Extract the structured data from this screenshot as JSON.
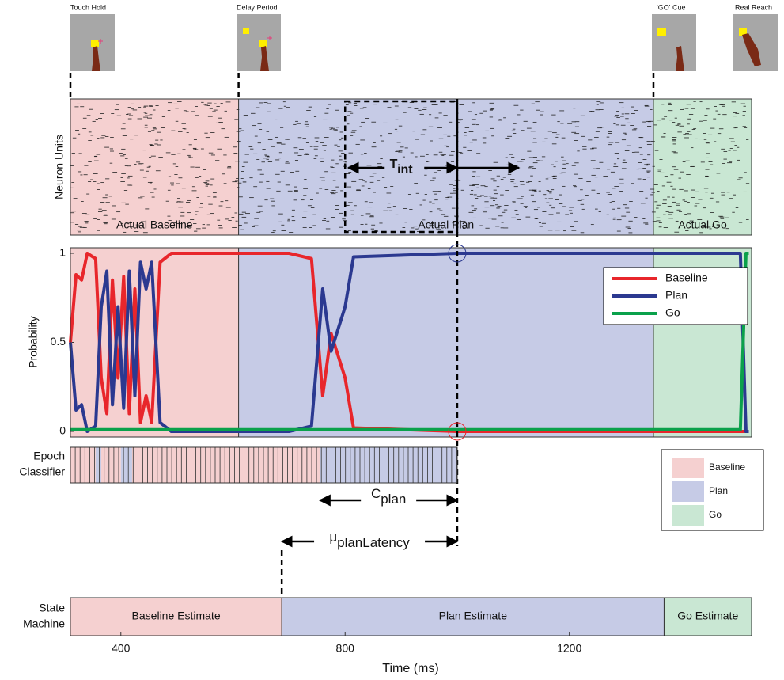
{
  "frames": [
    "Touch Hold",
    "Delay Period",
    "'GO' Cue",
    "Real Reach"
  ],
  "raster_ylabel": "Neuron Units",
  "chart_data": {
    "type": "line",
    "ylabel": "Probability",
    "xlabel": "Time (ms)",
    "x": [
      310,
      320,
      330,
      340,
      355,
      365,
      375,
      385,
      395,
      405,
      415,
      425,
      435,
      445,
      455,
      470,
      490,
      600,
      700,
      740,
      760,
      775,
      785,
      800,
      815,
      1000,
      1350,
      1505,
      1510,
      1515,
      1520
    ],
    "series": [
      {
        "name": "Baseline",
        "color": "#e8262b",
        "values": [
          0.5,
          0.88,
          0.85,
          1,
          0.97,
          0.3,
          0.1,
          0.85,
          0.3,
          0.87,
          0.1,
          0.8,
          0.05,
          0.2,
          0.05,
          0.95,
          1,
          1,
          1,
          0.97,
          0.2,
          0.55,
          0.45,
          0.3,
          0.02,
          0,
          0,
          0,
          0,
          0,
          0
        ]
      },
      {
        "name": "Plan",
        "color": "#2b3990",
        "values": [
          0.5,
          0.12,
          0.15,
          0,
          0.03,
          0.7,
          0.9,
          0.15,
          0.7,
          0.13,
          0.9,
          0.2,
          0.95,
          0.8,
          0.95,
          0.05,
          0,
          0,
          0,
          0.03,
          0.8,
          0.45,
          0.55,
          0.7,
          0.98,
          1,
          1,
          1,
          0.5,
          0,
          0
        ]
      },
      {
        "name": "Go",
        "color": "#0aa14b",
        "values": [
          0.01,
          0.01,
          0.01,
          0.01,
          0.01,
          0.01,
          0.01,
          0.01,
          0.01,
          0.01,
          0.01,
          0.01,
          0.01,
          0.01,
          0.01,
          0.01,
          0.01,
          0.01,
          0.01,
          0.01,
          0.01,
          0.01,
          0.01,
          0.01,
          0.01,
          0.01,
          0.01,
          0.01,
          0.5,
          1,
          1
        ]
      }
    ],
    "xlim": [
      310,
      1525
    ],
    "ylim": [
      0,
      1
    ],
    "xticks": [
      400,
      800,
      1200
    ],
    "yticks": [
      0,
      0.5,
      1
    ],
    "legend": "upper right",
    "epochs": [
      {
        "label": "Actual Baseline",
        "start": 310,
        "end": 610,
        "color": "#f5d0d0"
      },
      {
        "label": "Actual Plan",
        "start": 610,
        "end": 1350,
        "color": "#c6cbe6"
      },
      {
        "label": "Actual Go",
        "start": 1350,
        "end": 1525,
        "color": "#c9e7d3"
      }
    ]
  },
  "t_int": {
    "main": "T",
    "sub": "int",
    "start": 800,
    "end": 1000
  },
  "classifier": {
    "label": [
      "Epoch",
      "Classifier"
    ],
    "segments": [
      {
        "start": 310,
        "end": 355,
        "color": "#f5d0d0"
      },
      {
        "start": 355,
        "end": 365,
        "color": "#c6cbe6"
      },
      {
        "start": 365,
        "end": 400,
        "color": "#f5d0d0"
      },
      {
        "start": 400,
        "end": 420,
        "color": "#c6cbe6"
      },
      {
        "start": 420,
        "end": 755,
        "color": "#f5d0d0"
      },
      {
        "start": 755,
        "end": 1000,
        "color": "#c6cbe6"
      }
    ]
  },
  "c_plan": {
    "main": "C",
    "sub": "plan",
    "start": 755,
    "end": 1000
  },
  "mu": {
    "main": "μ",
    "sub": "planLatency",
    "start": 687,
    "end": 1000
  },
  "epoch_legend": [
    "Baseline",
    "Plan",
    "Go"
  ],
  "state_machine": {
    "label": [
      "State",
      "Machine"
    ],
    "segments": [
      {
        "label": "Baseline Estimate",
        "start": 310,
        "end": 687,
        "color": "#f5d0d0"
      },
      {
        "label": "Plan Estimate",
        "start": 687,
        "end": 1369,
        "color": "#c6cbe6"
      },
      {
        "label": "Go Estimate",
        "start": 1369,
        "end": 1525,
        "color": "#c9e7d3"
      }
    ]
  }
}
